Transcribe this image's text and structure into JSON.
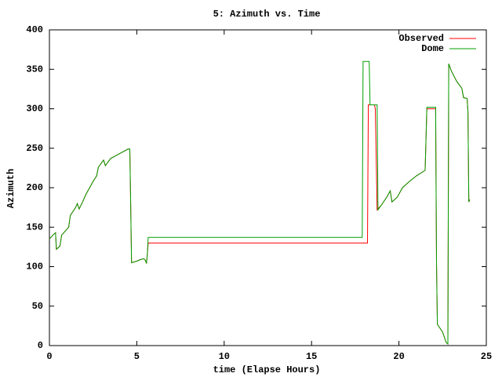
{
  "chart_data": {
    "type": "line",
    "title": "5: Azimuth vs. Time",
    "xlabel": "time (Elapse Hours)",
    "ylabel": "Azimuth",
    "xlim": [
      0,
      25
    ],
    "xticks": [
      0,
      5,
      10,
      15,
      20,
      25
    ],
    "ylim": [
      0,
      400
    ],
    "yticks": [
      0,
      50,
      100,
      150,
      200,
      250,
      300,
      350,
      400
    ],
    "grid": false,
    "legend": "top-right",
    "series": [
      {
        "name": "Observed",
        "color": "#ff0000",
        "x": [
          0,
          0.2,
          0.35,
          0.4,
          0.6,
          0.7,
          0.9,
          1.1,
          1.2,
          1.5,
          1.6,
          1.7,
          1.9,
          2.1,
          2.5,
          2.7,
          2.8,
          3.0,
          3.1,
          3.2,
          3.5,
          4.0,
          4.5,
          4.6,
          4.65,
          4.7,
          5.0,
          5.2,
          5.4,
          5.5,
          5.55,
          5.6,
          5.65,
          18.2,
          18.25,
          18.6,
          18.65,
          18.75,
          19.0,
          19.3,
          19.5,
          19.6,
          19.9,
          20.2,
          20.6,
          21.0,
          21.5,
          21.6,
          22.1,
          22.15,
          22.2,
          22.5,
          22.7,
          22.8,
          22.85,
          23.0,
          23.3,
          23.6,
          23.7,
          23.9,
          23.95,
          24.0,
          24.05
        ],
        "values": [
          135,
          140,
          143,
          122,
          126,
          140,
          145,
          150,
          165,
          175,
          180,
          173,
          182,
          192,
          208,
          215,
          226,
          232,
          235,
          228,
          237,
          243,
          249,
          249,
          180,
          105,
          107,
          109,
          110,
          108,
          104,
          115,
          130,
          130,
          305,
          305,
          300,
          172,
          178,
          188,
          196,
          182,
          188,
          200,
          208,
          215,
          222,
          300,
          300,
          105,
          27,
          17,
          4,
          2,
          357,
          348,
          335,
          326,
          314,
          313,
          296,
          182,
          185
        ]
      },
      {
        "name": "Dome",
        "color": "#00a000",
        "x": [
          0,
          0.2,
          0.35,
          0.4,
          0.6,
          0.7,
          0.9,
          1.1,
          1.2,
          1.5,
          1.6,
          1.7,
          1.9,
          2.1,
          2.5,
          2.7,
          2.8,
          3.0,
          3.1,
          3.2,
          3.5,
          4.0,
          4.5,
          4.6,
          4.65,
          4.7,
          5.0,
          5.2,
          5.4,
          5.5,
          5.55,
          5.6,
          5.65,
          17.9,
          17.95,
          18.3,
          18.35,
          18.75,
          18.8,
          19.0,
          19.3,
          19.5,
          19.6,
          19.9,
          20.2,
          20.6,
          21.0,
          21.5,
          21.6,
          22.1,
          22.15,
          22.2,
          22.5,
          22.7,
          22.8,
          22.85,
          23.0,
          23.3,
          23.6,
          23.7,
          23.9,
          23.95,
          24.0,
          24.05
        ],
        "values": [
          135,
          140,
          143,
          122,
          126,
          140,
          145,
          150,
          165,
          175,
          180,
          173,
          182,
          192,
          208,
          215,
          226,
          232,
          235,
          228,
          237,
          243,
          249,
          249,
          180,
          105,
          107,
          109,
          110,
          108,
          104,
          115,
          137,
          137,
          360,
          360,
          305,
          305,
          172,
          178,
          188,
          196,
          182,
          188,
          200,
          208,
          215,
          222,
          302,
          302,
          105,
          27,
          17,
          4,
          2,
          357,
          348,
          335,
          326,
          314,
          313,
          296,
          182,
          185
        ]
      }
    ]
  }
}
